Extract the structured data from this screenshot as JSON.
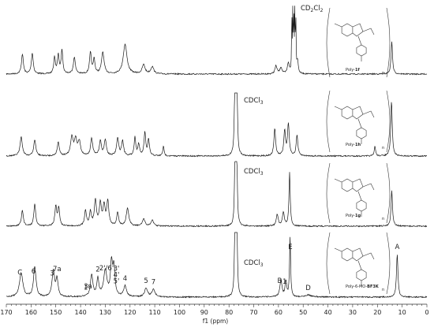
{
  "chart_data": {
    "type": "line",
    "title": "",
    "xlabel": "f1 (ppm)",
    "ylabel": "",
    "xlim": [
      170,
      0
    ],
    "x_ticks": [
      170,
      160,
      150,
      140,
      130,
      120,
      110,
      100,
      90,
      80,
      70,
      60,
      50,
      40,
      30,
      20,
      10,
      0
    ],
    "grid": false,
    "series": [
      {
        "id": "s1",
        "solvent_label_parts": [
          "CD",
          "2",
          "Cl",
          "2"
        ],
        "solvent_ppm": 53.8,
        "structure_caption": [
          "Poly-",
          "1f"
        ],
        "peaks": [
          {
            "ppm": 163.5,
            "h": 0.55,
            "w": 0.45
          },
          {
            "ppm": 159.5,
            "h": 0.58,
            "w": 0.45
          },
          {
            "ppm": 150.5,
            "h": 0.45,
            "w": 0.4
          },
          {
            "ppm": 149.0,
            "h": 0.5,
            "w": 0.4
          },
          {
            "ppm": 147.5,
            "h": 0.65,
            "w": 0.4
          },
          {
            "ppm": 142.5,
            "h": 0.45,
            "w": 0.5
          },
          {
            "ppm": 136.0,
            "h": 0.58,
            "w": 0.45
          },
          {
            "ppm": 134.5,
            "h": 0.4,
            "w": 0.4
          },
          {
            "ppm": 131.0,
            "h": 0.6,
            "w": 0.6
          },
          {
            "ppm": 122.0,
            "h": 0.82,
            "w": 0.9
          },
          {
            "ppm": 114.5,
            "h": 0.25,
            "w": 0.7
          },
          {
            "ppm": 111.0,
            "h": 0.2,
            "w": 0.7
          },
          {
            "ppm": 61.0,
            "h": 0.22,
            "w": 0.5
          },
          {
            "ppm": 59.0,
            "h": 0.18,
            "w": 0.5
          },
          {
            "ppm": 56.0,
            "h": 0.3,
            "w": 0.45
          },
          {
            "ppm": 54.6,
            "h": 1.6,
            "w": 0.12
          },
          {
            "ppm": 54.2,
            "h": 1.6,
            "w": 0.12
          },
          {
            "ppm": 53.8,
            "h": 1.6,
            "w": 0.12
          },
          {
            "ppm": 53.4,
            "h": 1.6,
            "w": 0.12
          },
          {
            "ppm": 53.0,
            "h": 1.6,
            "w": 0.12
          },
          {
            "ppm": 52.3,
            "h": 0.35,
            "w": 0.35
          },
          {
            "ppm": 14.2,
            "h": 0.9,
            "w": 0.35
          }
        ]
      },
      {
        "id": "s2",
        "solvent_label_parts": [
          "CDCl",
          "3"
        ],
        "solvent_ppm": 77.2,
        "structure_caption": [
          "Poly-",
          "1h"
        ],
        "peaks": [
          {
            "ppm": 164.0,
            "h": 0.42,
            "w": 0.55
          },
          {
            "ppm": 158.5,
            "h": 0.35,
            "w": 0.5
          },
          {
            "ppm": 149.0,
            "h": 0.3,
            "w": 0.5
          },
          {
            "ppm": 143.5,
            "h": 0.4,
            "w": 0.6
          },
          {
            "ppm": 142.0,
            "h": 0.35,
            "w": 0.6
          },
          {
            "ppm": 140.5,
            "h": 0.3,
            "w": 0.6
          },
          {
            "ppm": 135.5,
            "h": 0.38,
            "w": 0.5
          },
          {
            "ppm": 132.0,
            "h": 0.32,
            "w": 0.5
          },
          {
            "ppm": 130.0,
            "h": 0.35,
            "w": 0.5
          },
          {
            "ppm": 125.0,
            "h": 0.38,
            "w": 0.5
          },
          {
            "ppm": 123.0,
            "h": 0.32,
            "w": 0.5
          },
          {
            "ppm": 118.0,
            "h": 0.4,
            "w": 0.4
          },
          {
            "ppm": 116.5,
            "h": 0.25,
            "w": 0.4
          },
          {
            "ppm": 114.0,
            "h": 0.5,
            "w": 0.4
          },
          {
            "ppm": 112.5,
            "h": 0.35,
            "w": 0.4
          },
          {
            "ppm": 106.5,
            "h": 0.22,
            "w": 0.3
          },
          {
            "ppm": 77.6,
            "h": 1.45,
            "w": 0.25
          },
          {
            "ppm": 77.2,
            "h": 1.45,
            "w": 0.25
          },
          {
            "ppm": 76.8,
            "h": 1.45,
            "w": 0.25
          },
          {
            "ppm": 61.5,
            "h": 0.6,
            "w": 0.4
          },
          {
            "ppm": 57.5,
            "h": 0.55,
            "w": 0.4
          },
          {
            "ppm": 56.0,
            "h": 0.7,
            "w": 0.4
          },
          {
            "ppm": 52.5,
            "h": 0.45,
            "w": 0.4
          },
          {
            "ppm": 21.0,
            "h": 0.22,
            "w": 0.3
          },
          {
            "ppm": 14.3,
            "h": 1.2,
            "w": 0.35
          }
        ]
      },
      {
        "id": "s3",
        "solvent_label_parts": [
          "CDCl",
          "3"
        ],
        "solvent_ppm": 77.2,
        "structure_caption": [
          "Poly-",
          "1g"
        ],
        "peaks": [
          {
            "ppm": 163.5,
            "h": 0.4,
            "w": 0.45
          },
          {
            "ppm": 158.5,
            "h": 0.55,
            "w": 0.45
          },
          {
            "ppm": 150.0,
            "h": 0.5,
            "w": 0.45
          },
          {
            "ppm": 148.8,
            "h": 0.45,
            "w": 0.4
          },
          {
            "ppm": 138.0,
            "h": 0.4,
            "w": 0.45
          },
          {
            "ppm": 136.0,
            "h": 0.35,
            "w": 0.45
          },
          {
            "ppm": 134.0,
            "h": 0.65,
            "w": 0.5
          },
          {
            "ppm": 132.0,
            "h": 0.55,
            "w": 0.5
          },
          {
            "ppm": 130.5,
            "h": 0.5,
            "w": 0.5
          },
          {
            "ppm": 129.0,
            "h": 0.62,
            "w": 0.5
          },
          {
            "ppm": 125.0,
            "h": 0.35,
            "w": 0.45
          },
          {
            "ppm": 121.0,
            "h": 0.45,
            "w": 0.6
          },
          {
            "ppm": 114.5,
            "h": 0.18,
            "w": 0.6
          },
          {
            "ppm": 111.0,
            "h": 0.15,
            "w": 0.6
          },
          {
            "ppm": 77.6,
            "h": 1.3,
            "w": 0.25
          },
          {
            "ppm": 77.2,
            "h": 1.3,
            "w": 0.25
          },
          {
            "ppm": 76.8,
            "h": 1.3,
            "w": 0.25
          },
          {
            "ppm": 60.5,
            "h": 0.3,
            "w": 0.45
          },
          {
            "ppm": 58.0,
            "h": 0.35,
            "w": 0.45
          },
          {
            "ppm": 55.5,
            "h": 1.35,
            "w": 0.3
          },
          {
            "ppm": 14.2,
            "h": 0.9,
            "w": 0.35
          }
        ]
      },
      {
        "id": "s4",
        "solvent_label_parts": [
          "CDCl",
          "3"
        ],
        "solvent_ppm": 77.2,
        "structure_caption": [
          "Poly-6-MO-",
          "BF3K"
        ],
        "peak_labels": [
          {
            "text": "C",
            "ppm": 164.5
          },
          {
            "text": "6",
            "ppm": 159.0
          },
          {
            "text": "3",
            "ppm": 151.5
          },
          {
            "text": "7a",
            "ppm": 149.5
          },
          {
            "text": "3a",
            "ppm": 137.0
          },
          {
            "text": "1'",
            "ppm": 137.5
          },
          {
            "text": "2",
            "ppm": 133.0
          },
          {
            "text": "2'/6'",
            "ppm": 129.5
          },
          {
            "text": "3'",
            "ppm": 125.5
          },
          {
            "text": "4'",
            "ppm": 125.5
          },
          {
            "text": "5'",
            "ppm": 125.5
          },
          {
            "text": "4",
            "ppm": 122.0
          },
          {
            "text": "5",
            "ppm": 113.5
          },
          {
            "text": "7",
            "ppm": 110.5
          },
          {
            "text": "B",
            "ppm": 59.5
          },
          {
            "text": "1",
            "ppm": 57.5
          },
          {
            "text": "E",
            "ppm": 55.2
          },
          {
            "text": "D",
            "ppm": 48.0
          },
          {
            "text": "A",
            "ppm": 12.0
          }
        ],
        "peaks": [
          {
            "ppm": 164.0,
            "h": 0.55,
            "w": 0.8
          },
          {
            "ppm": 158.5,
            "h": 0.7,
            "w": 0.6
          },
          {
            "ppm": 151.0,
            "h": 0.6,
            "w": 0.6
          },
          {
            "ppm": 149.5,
            "h": 0.4,
            "w": 0.5
          },
          {
            "ppm": 135.5,
            "h": 0.5,
            "w": 0.6
          },
          {
            "ppm": 133.0,
            "h": 0.4,
            "w": 0.5
          },
          {
            "ppm": 130.0,
            "h": 0.6,
            "w": 0.8
          },
          {
            "ppm": 127.5,
            "h": 0.75,
            "w": 0.5
          },
          {
            "ppm": 126.5,
            "h": 0.65,
            "w": 0.5
          },
          {
            "ppm": 122.0,
            "h": 0.25,
            "w": 0.7
          },
          {
            "ppm": 113.5,
            "h": 0.2,
            "w": 0.7
          },
          {
            "ppm": 110.5,
            "h": 0.18,
            "w": 0.7
          },
          {
            "ppm": 77.6,
            "h": 1.4,
            "w": 0.25
          },
          {
            "ppm": 77.2,
            "h": 1.4,
            "w": 0.25
          },
          {
            "ppm": 76.8,
            "h": 1.4,
            "w": 0.25
          },
          {
            "ppm": 59.0,
            "h": 0.4,
            "w": 0.5
          },
          {
            "ppm": 57.0,
            "h": 0.35,
            "w": 0.4
          },
          {
            "ppm": 55.3,
            "h": 1.4,
            "w": 0.25
          },
          {
            "ppm": 48.0,
            "h": 0.05,
            "w": 1.5
          },
          {
            "ppm": 12.0,
            "h": 1.0,
            "w": 0.35
          }
        ]
      }
    ]
  }
}
